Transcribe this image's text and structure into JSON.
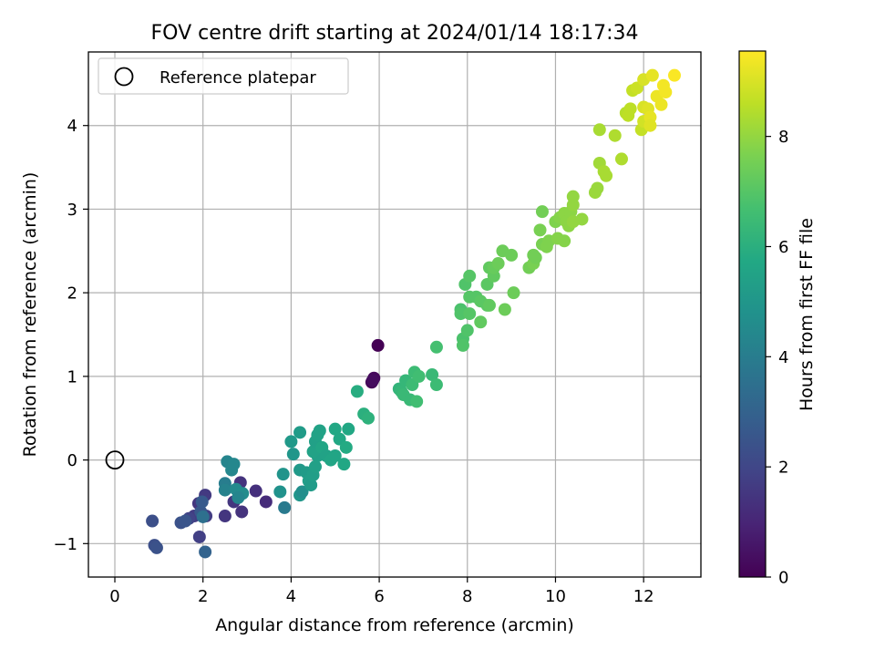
{
  "chart_data": {
    "type": "scatter",
    "title": "FOV centre drift starting at 2024/01/14 18:17:34",
    "xlabel": "Angular distance from reference (arcmin)",
    "ylabel": "Rotation from reference (arcmin)",
    "xlim": [
      -0.6,
      13.3
    ],
    "ylim": [
      -1.4,
      4.88
    ],
    "xticks": [
      0,
      2,
      4,
      6,
      8,
      10,
      12
    ],
    "yticks": [
      -1,
      0,
      1,
      2,
      3,
      4
    ],
    "grid": true,
    "legend": {
      "position": "top-left",
      "entries": [
        "Reference platepar"
      ]
    },
    "colorbar": {
      "label": "Hours from first FF file",
      "colormap": "viridis",
      "range": [
        0,
        9.55
      ],
      "ticks": [
        0,
        2,
        4,
        6,
        8
      ]
    },
    "reference": {
      "x": 0,
      "y": 0
    },
    "series": [
      {
        "columns": [
          "x",
          "y",
          "hours"
        ],
        "points": [
          [
            5.97,
            1.37,
            0.0
          ],
          [
            5.83,
            0.93,
            0.1
          ],
          [
            5.88,
            0.98,
            0.2
          ],
          [
            5.85,
            0.95,
            0.3
          ],
          [
            3.43,
            -0.5,
            1.2
          ],
          [
            3.2,
            -0.37,
            1.3
          ],
          [
            2.85,
            -0.27,
            1.4
          ],
          [
            2.88,
            -0.62,
            1.4
          ],
          [
            2.7,
            -0.5,
            1.5
          ],
          [
            2.5,
            -0.67,
            1.5
          ],
          [
            2.05,
            -0.42,
            1.6
          ],
          [
            2.07,
            -0.67,
            1.7
          ],
          [
            1.9,
            -0.52,
            1.5
          ],
          [
            1.8,
            -0.67,
            1.7
          ],
          [
            1.68,
            -0.7,
            1.9
          ],
          [
            1.92,
            -0.92,
            1.8
          ],
          [
            0.85,
            -0.73,
            2.3
          ],
          [
            0.9,
            -1.02,
            2.3
          ],
          [
            0.95,
            -1.05,
            2.4
          ],
          [
            1.5,
            -0.75,
            2.4
          ],
          [
            1.6,
            -0.73,
            2.5
          ],
          [
            1.95,
            -0.62,
            2.6
          ],
          [
            1.98,
            -0.5,
            2.7
          ],
          [
            2.05,
            -1.1,
            3.0
          ],
          [
            2.0,
            -0.68,
            3.5
          ],
          [
            2.5,
            -0.28,
            4.0
          ],
          [
            2.5,
            -0.36,
            4.2
          ],
          [
            2.55,
            -0.02,
            4.3
          ],
          [
            2.65,
            -0.12,
            4.4
          ],
          [
            2.7,
            -0.05,
            4.4
          ],
          [
            2.75,
            -0.35,
            4.5
          ],
          [
            2.9,
            -0.4,
            4.6
          ],
          [
            2.8,
            -0.45,
            4.3
          ],
          [
            3.85,
            -0.57,
            3.9
          ],
          [
            3.75,
            -0.38,
            4.8
          ],
          [
            3.82,
            -0.17,
            4.9
          ],
          [
            4.05,
            0.07,
            5.0
          ],
          [
            4.0,
            0.22,
            5.1
          ],
          [
            4.2,
            0.33,
            5.2
          ],
          [
            4.2,
            -0.42,
            5.0
          ],
          [
            4.25,
            -0.38,
            4.7
          ],
          [
            4.2,
            -0.12,
            5.1
          ],
          [
            4.35,
            -0.15,
            5.2
          ],
          [
            4.4,
            -0.25,
            5.3
          ],
          [
            4.45,
            -0.3,
            5.2
          ],
          [
            4.5,
            -0.18,
            5.3
          ],
          [
            4.55,
            -0.08,
            5.4
          ],
          [
            4.6,
            0.05,
            5.4
          ],
          [
            4.5,
            0.1,
            5.5
          ],
          [
            4.55,
            0.22,
            5.4
          ],
          [
            4.6,
            0.3,
            5.5
          ],
          [
            4.65,
            0.35,
            5.5
          ],
          [
            4.7,
            0.15,
            5.6
          ],
          [
            4.8,
            0.05,
            5.5
          ],
          [
            4.9,
            0.0,
            5.6
          ],
          [
            5.0,
            0.05,
            5.6
          ],
          [
            5.0,
            0.37,
            5.7
          ],
          [
            5.1,
            0.25,
            5.7
          ],
          [
            5.2,
            -0.05,
            5.7
          ],
          [
            5.25,
            0.15,
            5.8
          ],
          [
            5.3,
            0.37,
            5.7
          ],
          [
            5.5,
            0.82,
            5.9
          ],
          [
            5.65,
            0.55,
            6.0
          ],
          [
            5.75,
            0.5,
            6.1
          ],
          [
            6.45,
            0.85,
            6.2
          ],
          [
            6.5,
            0.82,
            6.3
          ],
          [
            6.55,
            0.78,
            6.4
          ],
          [
            6.6,
            0.95,
            6.3
          ],
          [
            6.7,
            0.72,
            6.4
          ],
          [
            6.75,
            0.9,
            6.5
          ],
          [
            6.8,
            1.05,
            6.5
          ],
          [
            6.85,
            0.7,
            6.6
          ],
          [
            6.9,
            1.0,
            6.6
          ],
          [
            7.2,
            1.02,
            6.4
          ],
          [
            7.3,
            0.9,
            6.5
          ],
          [
            7.3,
            1.35,
            6.7
          ],
          [
            7.85,
            1.8,
            6.8
          ],
          [
            7.85,
            1.75,
            6.9
          ],
          [
            7.9,
            1.45,
            6.8
          ],
          [
            7.9,
            1.37,
            6.9
          ],
          [
            8.0,
            1.55,
            6.9
          ],
          [
            8.05,
            1.75,
            7.0
          ],
          [
            7.95,
            2.1,
            6.9
          ],
          [
            8.05,
            2.2,
            7.0
          ],
          [
            8.05,
            1.95,
            7.0
          ],
          [
            8.2,
            1.95,
            7.0
          ],
          [
            8.3,
            1.9,
            7.1
          ],
          [
            8.3,
            1.65,
            7.2
          ],
          [
            8.45,
            1.85,
            7.1
          ],
          [
            8.5,
            1.85,
            7.2
          ],
          [
            8.45,
            2.1,
            7.1
          ],
          [
            8.5,
            2.3,
            7.2
          ],
          [
            8.6,
            2.2,
            7.2
          ],
          [
            8.6,
            2.3,
            7.3
          ],
          [
            8.7,
            2.35,
            7.4
          ],
          [
            8.8,
            2.5,
            7.4
          ],
          [
            8.85,
            1.8,
            7.4
          ],
          [
            9.0,
            2.45,
            7.4
          ],
          [
            9.05,
            2.0,
            7.4
          ],
          [
            9.4,
            2.3,
            7.5
          ],
          [
            9.5,
            2.45,
            7.5
          ],
          [
            9.5,
            2.35,
            7.6
          ],
          [
            9.55,
            2.42,
            7.5
          ],
          [
            9.65,
            2.75,
            7.6
          ],
          [
            9.7,
            2.97,
            7.5
          ],
          [
            9.7,
            2.58,
            7.6
          ],
          [
            9.8,
            2.55,
            7.7
          ],
          [
            9.85,
            2.62,
            7.7
          ],
          [
            10.0,
            2.85,
            7.7
          ],
          [
            10.05,
            2.65,
            7.8
          ],
          [
            10.1,
            2.9,
            7.8
          ],
          [
            10.2,
            2.62,
            7.8
          ],
          [
            10.2,
            2.95,
            7.9
          ],
          [
            10.25,
            2.85,
            7.9
          ],
          [
            10.3,
            2.8,
            7.9
          ],
          [
            10.35,
            2.97,
            7.9
          ],
          [
            10.4,
            3.05,
            8.0
          ],
          [
            10.4,
            3.15,
            8.0
          ],
          [
            10.4,
            2.85,
            8.0
          ],
          [
            10.6,
            2.88,
            8.0
          ],
          [
            10.9,
            3.2,
            8.1
          ],
          [
            10.95,
            3.25,
            8.1
          ],
          [
            11.0,
            3.55,
            8.2
          ],
          [
            11.0,
            3.95,
            8.3
          ],
          [
            11.1,
            3.45,
            8.3
          ],
          [
            11.15,
            3.4,
            8.3
          ],
          [
            11.35,
            3.88,
            8.4
          ],
          [
            11.5,
            3.6,
            8.4
          ],
          [
            11.6,
            4.15,
            8.5
          ],
          [
            11.65,
            4.12,
            8.6
          ],
          [
            11.7,
            4.2,
            8.6
          ],
          [
            11.75,
            4.42,
            8.7
          ],
          [
            11.85,
            4.45,
            8.8
          ],
          [
            11.95,
            3.95,
            8.7
          ],
          [
            12.0,
            4.05,
            8.9
          ],
          [
            12.0,
            4.22,
            9.0
          ],
          [
            12.0,
            4.55,
            9.0
          ],
          [
            12.1,
            4.2,
            9.1
          ],
          [
            12.15,
            4.1,
            9.2
          ],
          [
            12.15,
            4.0,
            9.1
          ],
          [
            12.2,
            4.6,
            9.2
          ],
          [
            12.3,
            4.35,
            9.3
          ],
          [
            12.4,
            4.25,
            9.3
          ],
          [
            12.45,
            4.48,
            9.4
          ],
          [
            12.5,
            4.4,
            9.4
          ],
          [
            12.7,
            4.6,
            9.5
          ]
        ]
      }
    ]
  }
}
